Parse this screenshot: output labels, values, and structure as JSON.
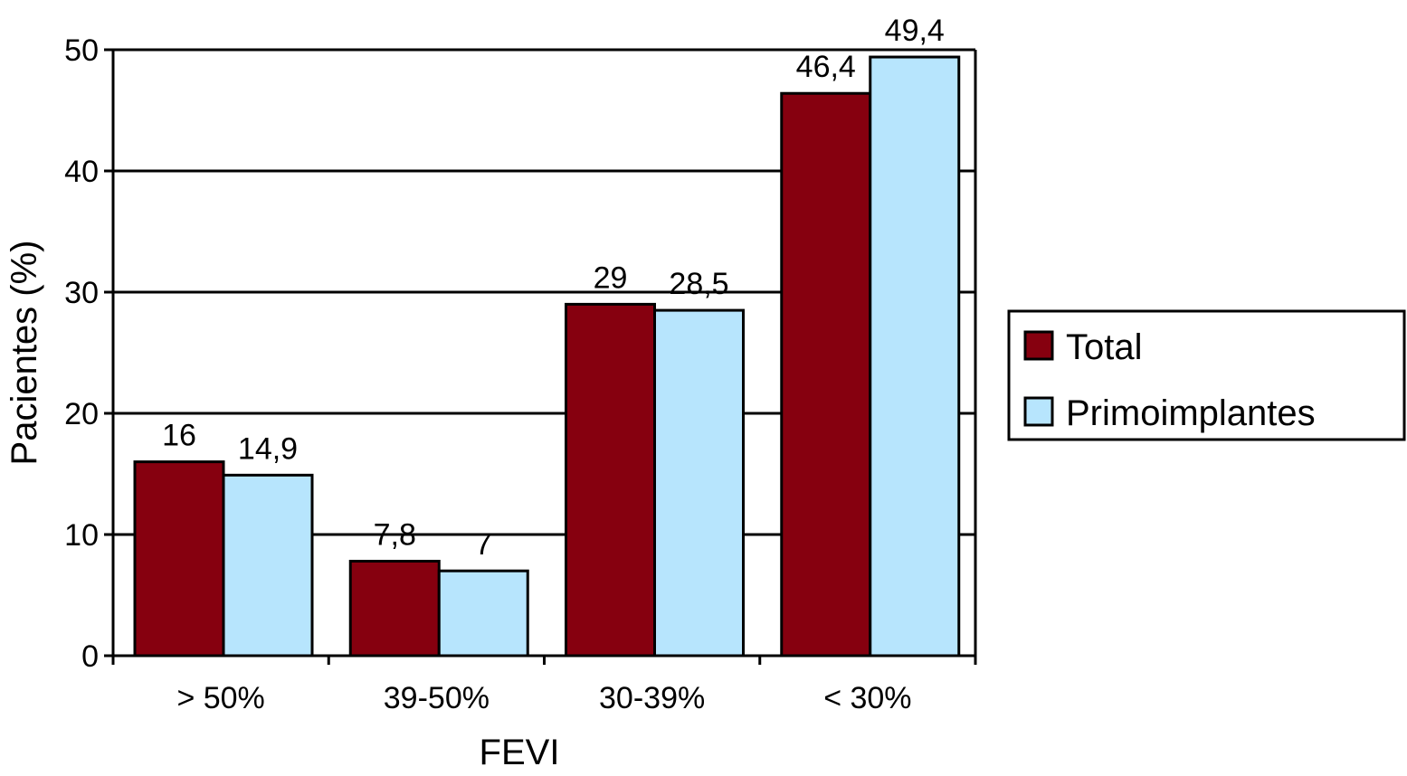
{
  "chart_data": {
    "type": "bar",
    "title": "",
    "xlabel": "FEVI",
    "ylabel": "Pacientes (%)",
    "categories": [
      "> 50%",
      "39-50%",
      "30-39%",
      "< 30%"
    ],
    "series": [
      {
        "name": "Total",
        "values": [
          16,
          7.8,
          29,
          46.4
        ],
        "labels": [
          "16",
          "7,8",
          "29",
          "46,4"
        ],
        "color": "#86000f"
      },
      {
        "name": "Primoimplantes",
        "values": [
          14.9,
          7,
          28.5,
          49.4
        ],
        "labels": [
          "14,9",
          "7",
          "28,5",
          "49,4"
        ],
        "color": "#b7e5fd"
      }
    ],
    "ylim": [
      0,
      50
    ],
    "yticks": [
      0,
      10,
      20,
      30,
      40,
      50
    ],
    "grid": true,
    "legend": "right"
  }
}
